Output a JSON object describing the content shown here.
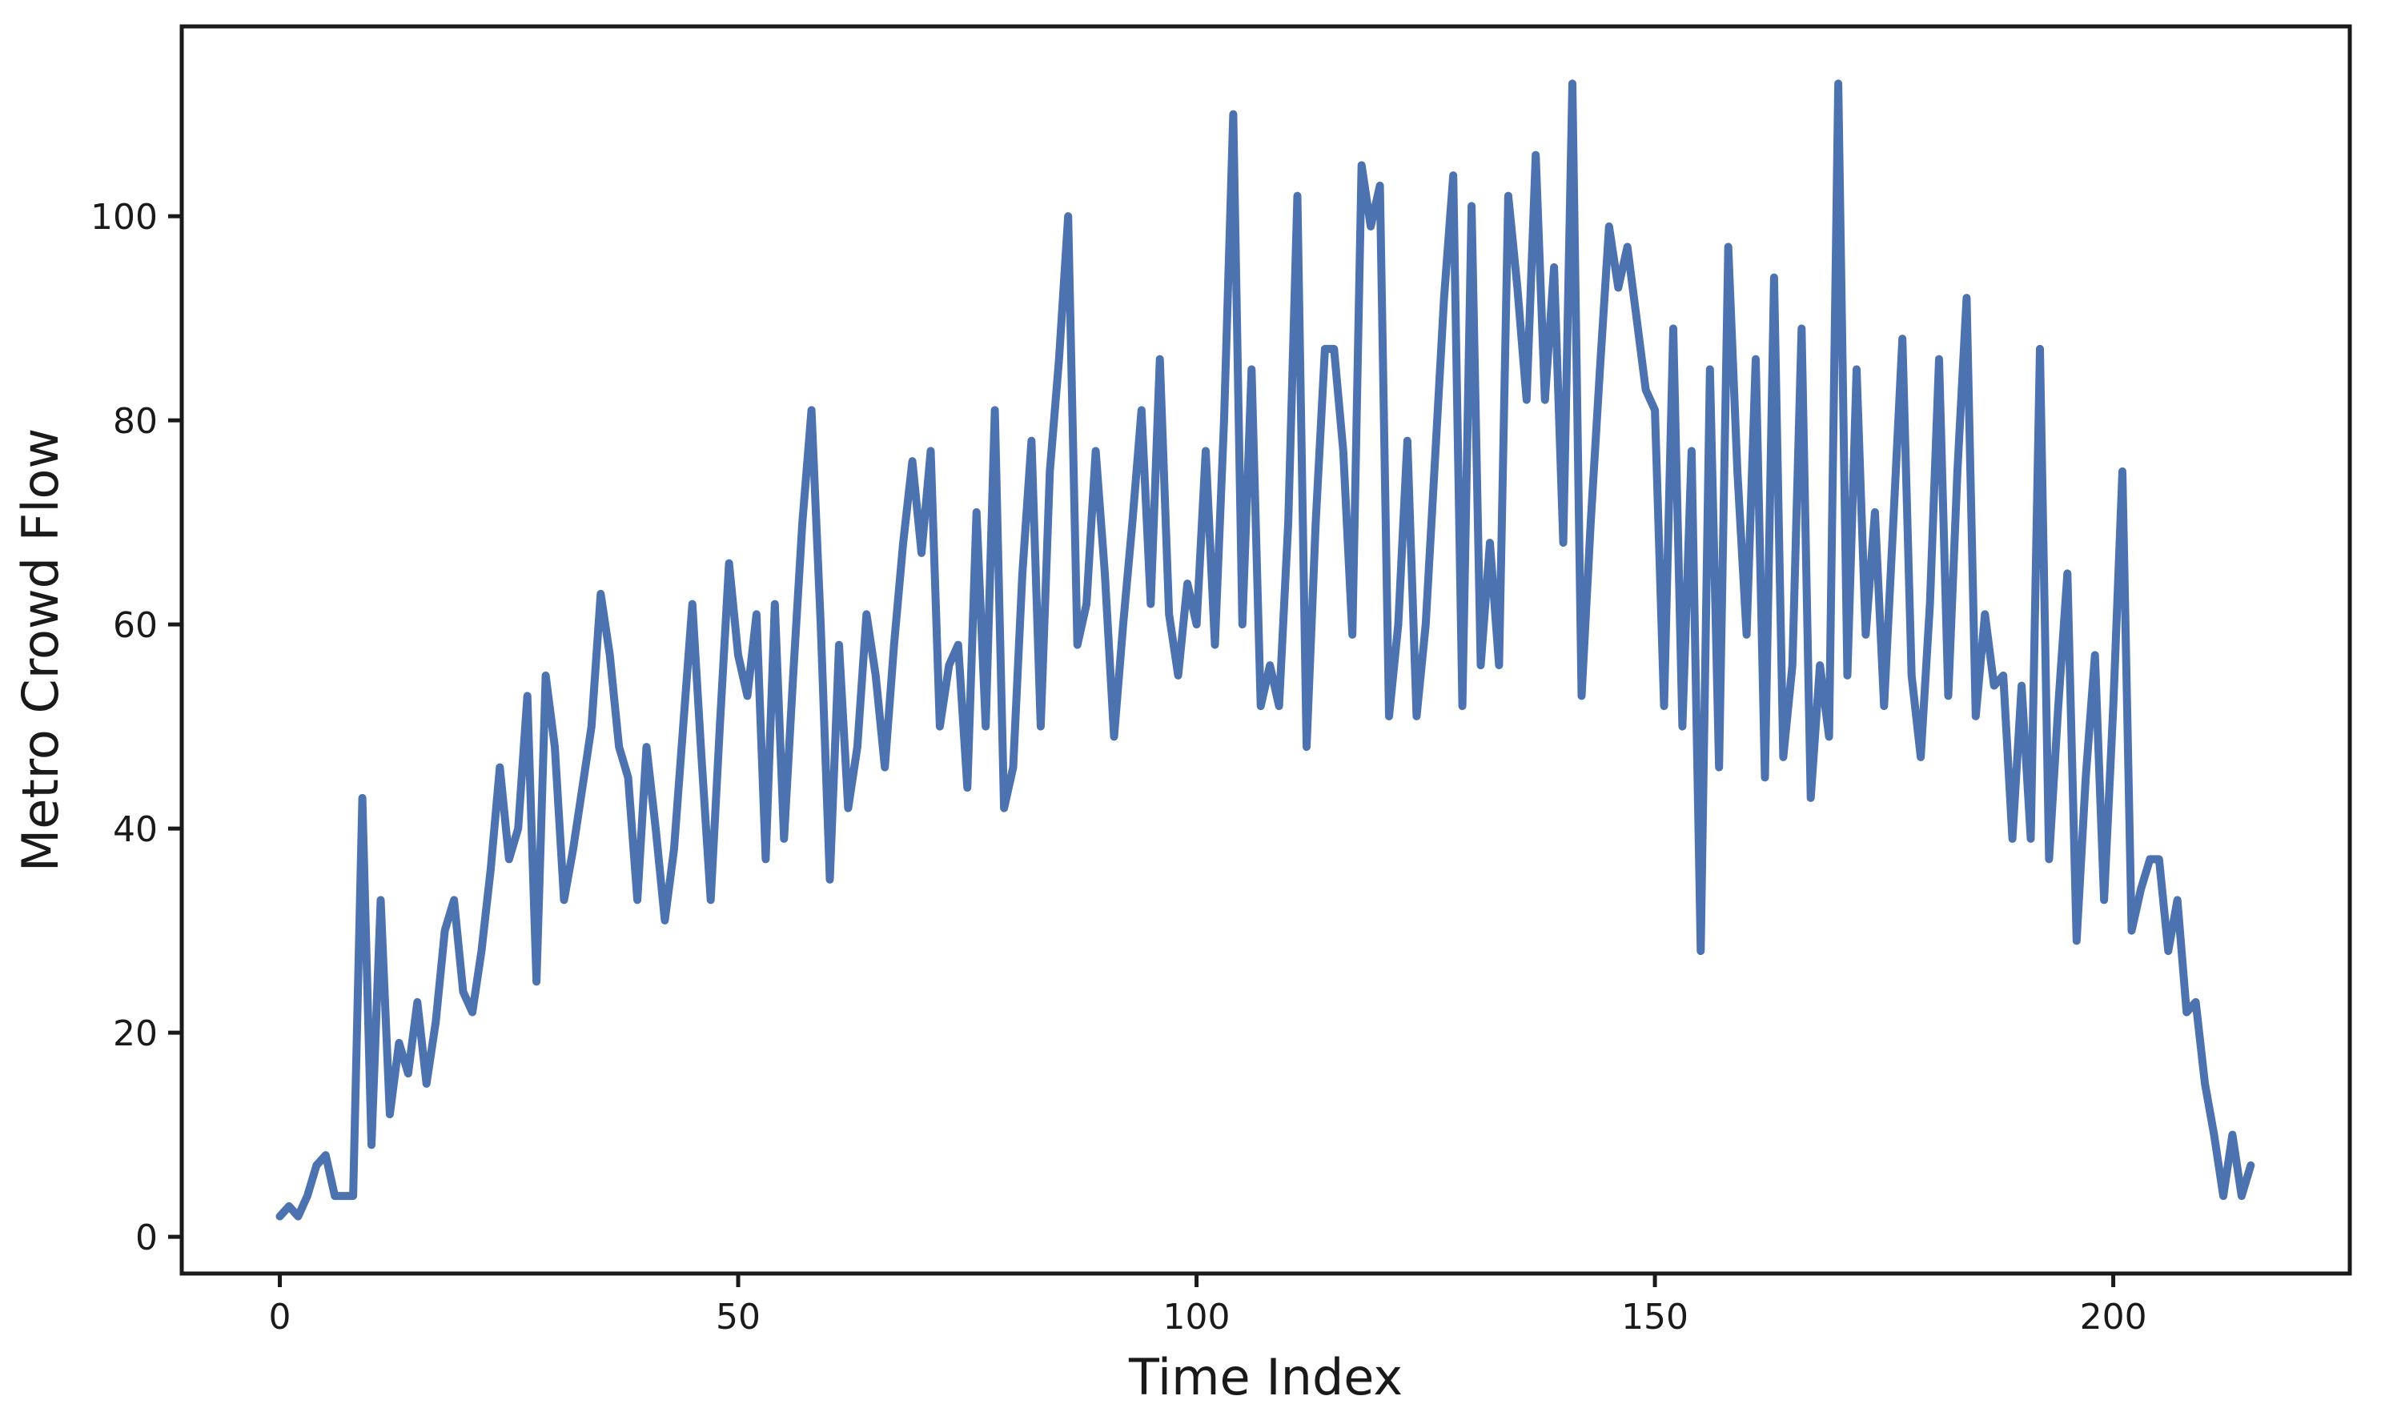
{
  "chart_data": {
    "type": "line",
    "title": "",
    "xlabel": "Time Index",
    "ylabel": "Metro Crowd Flow",
    "legend": null,
    "grid": false,
    "background_color": "#ffffff",
    "axis_color": "#1a1a1a",
    "line_color": "#4c72b0",
    "line_width": 10,
    "xticks": [
      0,
      50,
      100,
      150,
      200
    ],
    "yticks": [
      0,
      20,
      40,
      60,
      80,
      100
    ],
    "xlim": [
      -10.7,
      225.8
    ],
    "ylim": [
      -3.6,
      118.6
    ],
    "x_start": 0,
    "x_step": 1,
    "values": [
      2,
      3,
      2,
      4,
      7,
      8,
      4,
      4,
      4,
      43,
      9,
      33,
      12,
      19,
      16,
      23,
      15,
      21,
      30,
      33,
      24,
      22,
      28,
      36,
      46,
      37,
      40,
      53,
      25,
      55,
      48,
      33,
      38,
      44,
      50,
      63,
      57,
      48,
      45,
      33,
      48,
      40,
      31,
      38,
      50,
      62,
      47,
      33,
      50,
      66,
      57,
      53,
      61,
      37,
      62,
      39,
      55,
      70,
      81,
      60,
      35,
      58,
      42,
      48,
      61,
      55,
      46,
      58,
      68,
      76,
      67,
      77,
      50,
      56,
      58,
      44,
      71,
      50,
      81,
      42,
      46,
      65,
      78,
      50,
      75,
      86,
      100,
      58,
      62,
      77,
      65,
      49,
      60,
      70,
      81,
      62,
      86,
      61,
      55,
      64,
      60,
      77,
      58,
      80,
      110,
      60,
      85,
      52,
      56,
      52,
      70,
      102,
      48,
      70,
      87,
      87,
      77,
      59,
      105,
      99,
      103,
      51,
      60,
      78,
      51,
      60,
      76,
      92,
      104,
      52,
      101,
      56,
      68,
      56,
      102,
      93,
      82,
      106,
      82,
      95,
      68,
      113,
      53,
      70,
      85,
      99,
      93,
      97,
      90,
      83,
      81,
      52,
      89,
      50,
      77,
      28,
      85,
      46,
      97,
      75,
      59,
      86,
      45,
      94,
      47,
      56,
      89,
      43,
      56,
      49,
      113,
      55,
      85,
      59,
      71,
      52,
      70,
      88,
      55,
      47,
      62,
      86,
      53,
      75,
      92,
      51,
      61,
      54,
      55,
      39,
      54,
      39,
      87,
      37,
      52,
      65,
      29,
      45,
      57,
      33,
      52,
      75,
      30,
      34,
      37,
      37,
      28,
      33,
      22,
      23,
      15,
      10,
      4,
      10,
      4,
      7
    ]
  }
}
